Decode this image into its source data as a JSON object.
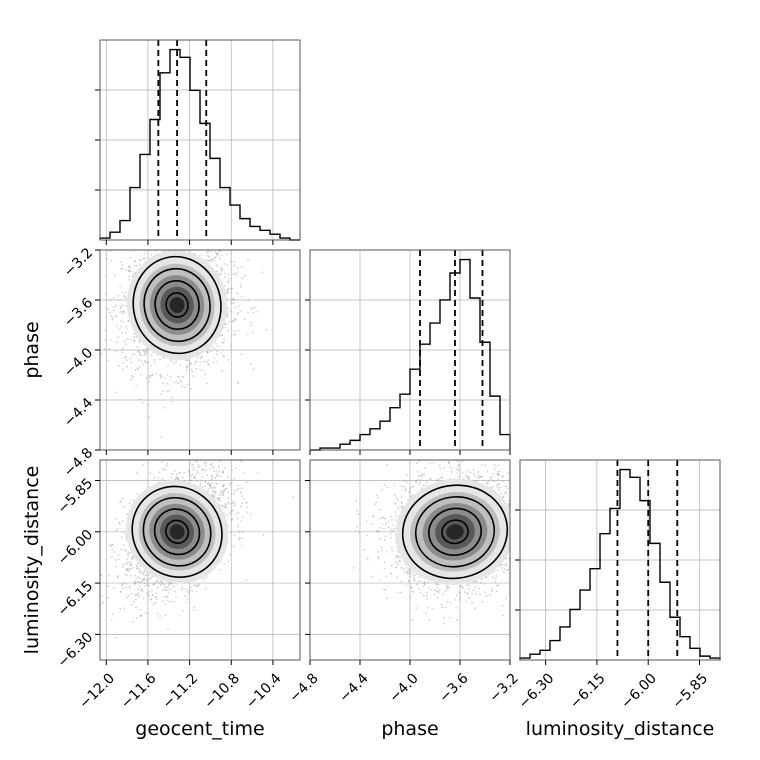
{
  "chart_data": {
    "type": "corner",
    "parameters": [
      "geocent_time",
      "phase",
      "luminosity_distance"
    ],
    "axis_labels": {
      "x": [
        "geocent_time",
        "phase",
        "luminosity_distance"
      ],
      "y": [
        "phase",
        "luminosity_distance"
      ]
    },
    "ranges": {
      "geocent_time": [
        -12.06,
        -10.14
      ],
      "phase": [
        -4.8,
        -3.2
      ],
      "luminosity_distance": [
        -6.375,
        -5.79
      ]
    },
    "ticks": {
      "geocent_time": [
        -12.0,
        -11.6,
        -11.2,
        -10.8,
        -10.4
      ],
      "phase": [
        -4.8,
        -4.4,
        -4.0,
        -3.6,
        -3.2
      ],
      "luminosity_distance": [
        -6.3,
        -6.15,
        -6.0,
        -5.85
      ]
    },
    "tick_labels": {
      "geocent_time": [
        "−12.0",
        "−11.6",
        "−11.2",
        "−10.8",
        "−10.4"
      ],
      "phase": [
        "−4.8",
        "−4.4",
        "−4.0",
        "−3.6",
        "−3.2"
      ],
      "luminosity_distance": [
        "−6.30",
        "−6.15",
        "−6.00",
        "−5.85"
      ]
    },
    "quantiles": {
      "geocent_time": [
        -11.5,
        -11.32,
        -11.04
      ],
      "phase": [
        -3.92,
        -3.64,
        -3.42
      ],
      "luminosity_distance": [
        -6.09,
        -6.0,
        -5.915
      ]
    },
    "means": {
      "geocent_time": -11.32,
      "phase": -3.64,
      "luminosity_distance": -6.0
    },
    "stds": {
      "geocent_time": 0.2,
      "phase": 0.2,
      "luminosity_distance": 0.07
    },
    "histograms": {
      "geocent_time": {
        "edges": [
          -12.06,
          -11.964,
          -11.868,
          -11.772,
          -11.676,
          -11.58,
          -11.484,
          -11.388,
          -11.292,
          -11.196,
          -11.1,
          -11.004,
          -10.908,
          -10.812,
          -10.716,
          -10.62,
          -10.524,
          -10.428,
          -10.332,
          -10.236,
          -10.14
        ],
        "counts": [
          0.01,
          0.04,
          0.1,
          0.27,
          0.44,
          0.62,
          0.86,
          0.98,
          0.94,
          0.77,
          0.6,
          0.42,
          0.27,
          0.18,
          0.11,
          0.07,
          0.05,
          0.03,
          0.01,
          0.0
        ]
      },
      "phase": {
        "edges": [
          -4.8,
          -4.72,
          -4.64,
          -4.56,
          -4.48,
          -4.4,
          -4.32,
          -4.24,
          -4.16,
          -4.08,
          -4.0,
          -3.92,
          -3.84,
          -3.76,
          -3.68,
          -3.6,
          -3.52,
          -3.44,
          -3.36,
          -3.28,
          -3.2
        ],
        "counts": [
          0.0,
          0.01,
          0.01,
          0.03,
          0.05,
          0.08,
          0.11,
          0.15,
          0.22,
          0.29,
          0.42,
          0.55,
          0.66,
          0.78,
          0.92,
          0.99,
          0.79,
          0.56,
          0.28,
          0.08
        ]
      },
      "luminosity_distance": {
        "edges": [
          -6.375,
          -6.3458,
          -6.3165,
          -6.2872,
          -6.258,
          -6.2288,
          -6.1995,
          -6.1702,
          -6.141,
          -6.1118,
          -6.0825,
          -6.0532,
          -6.024,
          -5.9948,
          -5.9655,
          -5.9362,
          -5.907,
          -5.8778,
          -5.8485,
          -5.8192,
          -5.79
        ],
        "counts": [
          0.01,
          0.03,
          0.05,
          0.1,
          0.17,
          0.26,
          0.36,
          0.47,
          0.65,
          0.78,
          0.98,
          0.94,
          0.82,
          0.6,
          0.4,
          0.22,
          0.12,
          0.06,
          0.02,
          0.01
        ]
      }
    },
    "contour_levels": [
      0.5,
      1.0,
      1.5,
      2.0
    ],
    "grid": true,
    "colors": {
      "line": "#000000",
      "quantile": "#000000",
      "grid": "#b0b0b0",
      "points": "#9a9a9a",
      "density": "#222222"
    }
  }
}
